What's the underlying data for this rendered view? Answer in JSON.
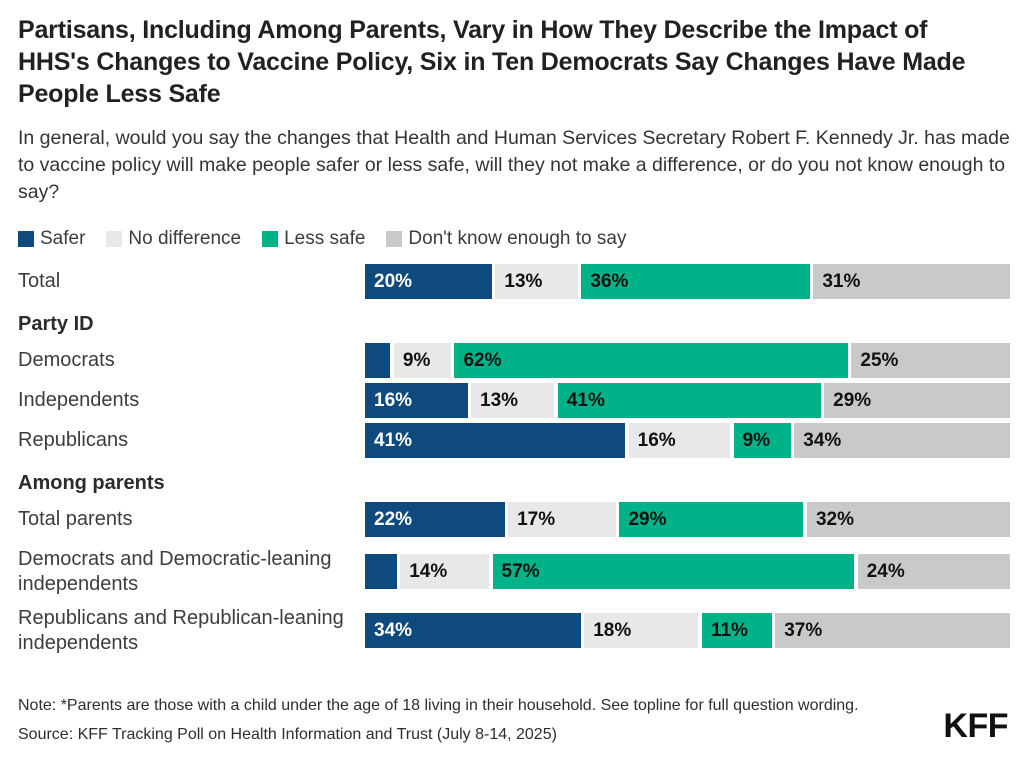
{
  "title": "Partisans, Including Among Parents, Vary in How They Describe the Impact of HHS's Changes to Vaccine Policy, Six in Ten Democrats Say Changes Have Made People Less Safe",
  "subtitle": "In general, would you say the changes that Health and Human Services Secretary Robert F. Kennedy Jr. has made to vaccine policy will make people safer or less safe, will they not make a difference, or do you not know enough to say?",
  "colors": {
    "safer": "#0e4a7d",
    "no_difference": "#e8e8e8",
    "less_safe": "#00b287",
    "dont_know": "#c9c9c9"
  },
  "legend": [
    {
      "label": "Safer",
      "color_key": "safer"
    },
    {
      "label": "No difference",
      "color_key": "no_difference"
    },
    {
      "label": "Less safe",
      "color_key": "less_safe"
    },
    {
      "label": "Don't know enough to say",
      "color_key": "dont_know"
    }
  ],
  "chart_data": {
    "type": "bar",
    "variant": "horizontal-stacked",
    "xlim": [
      0,
      100
    ],
    "series_names": [
      "Safer",
      "No difference",
      "Less safe",
      "Don't know enough to say"
    ],
    "series_color_keys": [
      "safer",
      "no_difference",
      "less_safe",
      "dont_know"
    ],
    "rows": [
      {
        "kind": "bar",
        "label": "Total",
        "values": [
          20,
          13,
          36,
          31
        ],
        "value_labels": [
          "20%",
          "13%",
          "36%",
          "31%"
        ]
      },
      {
        "kind": "section",
        "label": "Party ID"
      },
      {
        "kind": "bar",
        "label": "Democrats",
        "values": [
          4,
          9,
          62,
          25
        ],
        "value_labels": [
          "",
          "9%",
          "62%",
          "25%"
        ]
      },
      {
        "kind": "bar",
        "label": "Independents",
        "values": [
          16,
          13,
          41,
          29
        ],
        "value_labels": [
          "16%",
          "13%",
          "41%",
          "29%"
        ]
      },
      {
        "kind": "bar",
        "label": "Republicans",
        "values": [
          41,
          16,
          9,
          34
        ],
        "value_labels": [
          "41%",
          "16%",
          "9%",
          "34%"
        ]
      },
      {
        "kind": "section",
        "label": "Among parents"
      },
      {
        "kind": "bar",
        "label": "Total parents",
        "values": [
          22,
          17,
          29,
          32
        ],
        "value_labels": [
          "22%",
          "17%",
          "29%",
          "32%"
        ]
      },
      {
        "kind": "bar",
        "label": "Democrats and Democratic-leaning independents",
        "two_line": true,
        "values": [
          5,
          14,
          57,
          24
        ],
        "value_labels": [
          "",
          "14%",
          "57%",
          "24%"
        ]
      },
      {
        "kind": "bar",
        "label": "Republicans and Republican-leaning independents",
        "two_line": true,
        "values": [
          34,
          18,
          11,
          37
        ],
        "value_labels": [
          "34%",
          "18%",
          "11%",
          "37%"
        ]
      }
    ]
  },
  "note": "Note: *Parents are those with a child under the age of 18 living in their household. See topline for full question wording.",
  "source": "Source: KFF Tracking Poll on Health Information and Trust (July 8-14, 2025)",
  "logo": "KFF"
}
